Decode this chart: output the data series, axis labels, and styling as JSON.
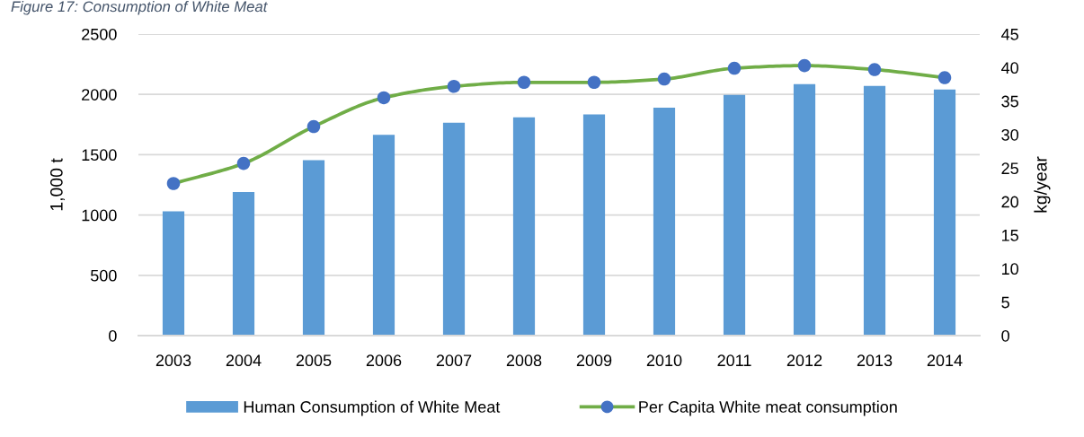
{
  "chart_data": {
    "type": "bar",
    "title": "Figure 17: Consumption of White Meat",
    "ylabel": "1,000 t",
    "y2label": "kg/year",
    "categories": [
      "2003",
      "2004",
      "2005",
      "2006",
      "2007",
      "2008",
      "2009",
      "2010",
      "2011",
      "2012",
      "2013",
      "2014"
    ],
    "series": [
      {
        "name": "Human Consumption of White Meat",
        "color": "#5b9bd5",
        "values": [
          1030,
          1190,
          1455,
          1665,
          1765,
          1810,
          1835,
          1890,
          1995,
          2085,
          2070,
          2040
        ]
      },
      {
        "name": "Per Capita White meat consumption",
        "type": "line",
        "axis": "y2",
        "color": "#70ad47",
        "marker": "circle",
        "line_style": "solid",
        "colors": [
          "#4472c4",
          "#4472c4",
          "#4472c4",
          "#4472c4",
          "#4472c4",
          "#4472c4",
          "#4472c4",
          "#4472c4",
          "#4472c4",
          "#4472c4",
          "#4472c4",
          "#4472c4"
        ],
        "values": [
          22.7,
          25.7,
          31.2,
          35.5,
          37.2,
          37.8,
          37.8,
          38.3,
          39.9,
          40.3,
          39.7,
          38.5
        ]
      }
    ],
    "ylim": [
      0,
      2500
    ],
    "yticks": [
      0,
      500,
      1000,
      1500,
      2000,
      2500
    ],
    "y2lim": [
      0,
      45
    ],
    "y2ticks": [
      0,
      5,
      10,
      15,
      20,
      25,
      30,
      35,
      40,
      45
    ],
    "grid": "y",
    "legend": "bottom"
  }
}
